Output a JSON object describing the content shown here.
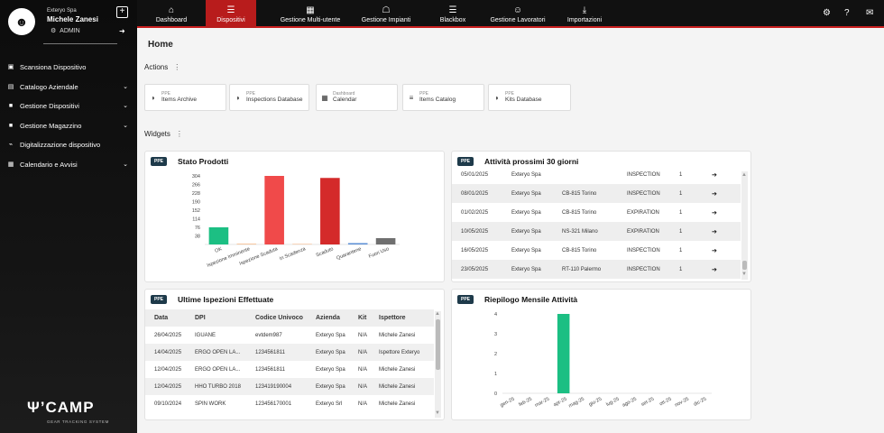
{
  "user": {
    "company": "Exteryo Spa",
    "name": "Michele Zanesi",
    "role": "ADMIN"
  },
  "nav": [
    {
      "label": "Dashboard",
      "icon": "home-icon",
      "glyph": "⌂"
    },
    {
      "label": "Dispositivi",
      "icon": "list-icon",
      "glyph": "☰"
    },
    {
      "label": "Gestione Multi-utente",
      "icon": "building-icon",
      "glyph": "▦"
    },
    {
      "label": "Gestione Impianti",
      "icon": "institution-icon",
      "glyph": "☖"
    },
    {
      "label": "Blackbox",
      "icon": "list-icon",
      "glyph": "☰"
    },
    {
      "label": "Gestione Lavoratori",
      "icon": "users-icon",
      "glyph": "☺"
    },
    {
      "label": "Importazioni",
      "icon": "download-icon",
      "glyph": "⤓"
    }
  ],
  "sidebar": {
    "items": [
      {
        "label": "Scansiona Dispositivo",
        "icon": "qr-icon",
        "glyph": "▣",
        "chevron": false
      },
      {
        "label": "Catalogo Aziendale",
        "icon": "book-icon",
        "glyph": "▤",
        "chevron": true
      },
      {
        "label": "Gestione Dispositivi",
        "icon": "box-icon",
        "glyph": "■",
        "chevron": true
      },
      {
        "label": "Gestione Magazzino",
        "icon": "warehouse-icon",
        "glyph": "■",
        "chevron": true
      },
      {
        "label": "Digitalizzazione dispositivo",
        "icon": "rss-icon",
        "glyph": "⌁",
        "chevron": false
      },
      {
        "label": "Calendario e Avvisi",
        "icon": "calendar-icon",
        "glyph": "▦",
        "chevron": true
      }
    ],
    "logo": "CAMP",
    "logo_sub": "GEAR TRACKING SYSTEM"
  },
  "page": {
    "title": "Home",
    "actions_label": "Actions",
    "widgets_label": "Widgets"
  },
  "actions": [
    {
      "small": "PPE",
      "big": "Items Archive",
      "icon": "shield-icon",
      "glyph": "◗"
    },
    {
      "small": "PPE",
      "big": "Inspections Database",
      "icon": "shield-icon",
      "glyph": "◗"
    },
    {
      "small": "Dashboard",
      "big": "Calendar",
      "icon": "calendar-icon",
      "glyph": "▦"
    },
    {
      "small": "PPE",
      "big": "Items Catalog",
      "icon": "database-icon",
      "glyph": "≡"
    },
    {
      "small": "PPE",
      "big": "Kits Database",
      "icon": "shield-icon",
      "glyph": "◗"
    }
  ],
  "badge": "PPE",
  "stato": {
    "title": "Stato Prodotti",
    "chart_data": {
      "type": "bar",
      "categories": [
        "OK",
        "Ispezione Imminente",
        "Ispezione Scaduta",
        "In Scadenza",
        "Scaduto",
        "Quarantene",
        "Fuori Uso"
      ],
      "values": [
        76,
        0,
        304,
        0,
        295,
        4,
        28
      ],
      "colors": [
        "#1cbf83",
        "#f4a261",
        "#f04a4a",
        "#f6b78a",
        "#d42a2a",
        "#5b8fd6",
        "#6f6f6f"
      ],
      "yticks": [
        38,
        76,
        114,
        152,
        190,
        228,
        266,
        304
      ],
      "ylim": [
        0,
        304
      ]
    }
  },
  "attivita": {
    "title": "Attività prossimi 30 giorni",
    "rows": [
      {
        "date": "05/01/2025",
        "company": "Exteryo Spa",
        "site": "",
        "type": "INSPECTION",
        "qty": "1"
      },
      {
        "date": "08/01/2025",
        "company": "Exteryo Spa",
        "site": "CB-815 Torino",
        "type": "INSPECTION",
        "qty": "1"
      },
      {
        "date": "01/02/2025",
        "company": "Exteryo Spa",
        "site": "CB-815 Torino",
        "type": "EXPIRATION",
        "qty": "1"
      },
      {
        "date": "10/05/2025",
        "company": "Exteryo Spa",
        "site": "NS-321 Milano",
        "type": "EXPIRATION",
        "qty": "1"
      },
      {
        "date": "16/05/2025",
        "company": "Exteryo Spa",
        "site": "CB-815 Torino",
        "type": "INSPECTION",
        "qty": "1"
      },
      {
        "date": "23/05/2025",
        "company": "Exteryo Spa",
        "site": "RT-110 Palermo",
        "type": "INSPECTION",
        "qty": "1"
      }
    ]
  },
  "ispezioni": {
    "title": "Ultime Ispezioni Effettuate",
    "headers": [
      "Data",
      "DPI",
      "Codice Univoco",
      "Azienda",
      "Kit",
      "Ispettore"
    ],
    "rows": [
      [
        "26/04/2025",
        "IGUANE",
        "evtdem987",
        "Exteryo Spa",
        "N/A",
        "Michele Zanesi"
      ],
      [
        "14/04/2025",
        "ERGO OPEN LA...",
        "1234561811",
        "Exteryo Spa",
        "N/A",
        "Ispettore Exteryo"
      ],
      [
        "12/04/2025",
        "ERGO OPEN LA...",
        "1234561811",
        "Exteryo Spa",
        "N/A",
        "Michele Zanesi"
      ],
      [
        "12/04/2025",
        "HHO TURBO 2018",
        "123419190004",
        "Exteryo Spa",
        "N/A",
        "Michele Zanesi"
      ],
      [
        "09/10/2024",
        "SPIN WORK",
        "123456170001",
        "Exteryo Srl",
        "N/A",
        "Michele Zanesi"
      ]
    ]
  },
  "riepilogo": {
    "title": "Riepilogo Mensile Attività",
    "chart_data": {
      "type": "bar",
      "categories": [
        "gen-25",
        "feb-25",
        "mar-25",
        "apr-25",
        "mag-25",
        "giu-25",
        "lug-25",
        "ago-25",
        "set-25",
        "ott-25",
        "nov-25",
        "dic-25"
      ],
      "values": [
        0,
        0,
        0,
        4,
        0,
        0,
        0,
        0,
        0,
        0,
        0,
        0
      ],
      "color": "#1cbf83",
      "yticks": [
        0,
        1,
        2,
        3,
        4
      ],
      "ylim": [
        0,
        4
      ]
    }
  }
}
